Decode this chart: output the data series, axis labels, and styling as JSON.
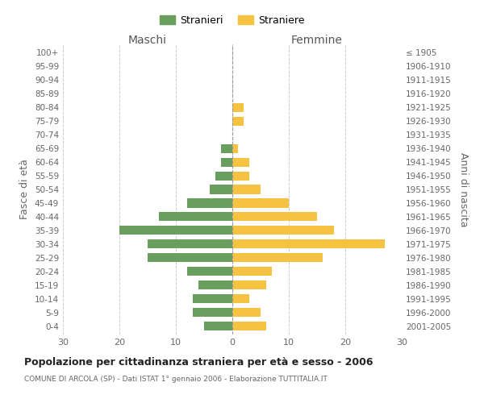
{
  "age_groups": [
    "0-4",
    "5-9",
    "10-14",
    "15-19",
    "20-24",
    "25-29",
    "30-34",
    "35-39",
    "40-44",
    "45-49",
    "50-54",
    "55-59",
    "60-64",
    "65-69",
    "70-74",
    "75-79",
    "80-84",
    "85-89",
    "90-94",
    "95-99",
    "100+"
  ],
  "birth_years": [
    "2001-2005",
    "1996-2000",
    "1991-1995",
    "1986-1990",
    "1981-1985",
    "1976-1980",
    "1971-1975",
    "1966-1970",
    "1961-1965",
    "1956-1960",
    "1951-1955",
    "1946-1950",
    "1941-1945",
    "1936-1940",
    "1931-1935",
    "1926-1930",
    "1921-1925",
    "1916-1920",
    "1911-1915",
    "1906-1910",
    "≤ 1905"
  ],
  "males": [
    5,
    7,
    7,
    6,
    8,
    15,
    15,
    20,
    13,
    8,
    4,
    3,
    2,
    2,
    0,
    0,
    0,
    0,
    0,
    0,
    0
  ],
  "females": [
    6,
    5,
    3,
    6,
    7,
    16,
    27,
    18,
    15,
    10,
    5,
    3,
    3,
    1,
    0,
    2,
    2,
    0,
    0,
    0,
    0
  ],
  "male_color": "#6a9e5e",
  "female_color": "#f5c242",
  "male_label": "Stranieri",
  "female_label": "Straniere",
  "title": "Popolazione per cittadinanza straniera per età e sesso - 2006",
  "subtitle": "COMUNE DI ARCOLA (SP) - Dati ISTAT 1° gennaio 2006 - Elaborazione TUTTITALIA.IT",
  "xlabel_left": "Maschi",
  "xlabel_right": "Femmine",
  "ylabel_left": "Fasce di età",
  "ylabel_right": "Anni di nascita",
  "xlim": 30,
  "background_color": "#ffffff",
  "grid_color": "#cccccc"
}
